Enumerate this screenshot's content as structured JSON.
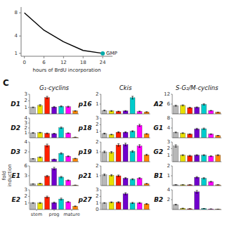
{
  "title": "C",
  "column_headers": [
    "G₁-cyclins",
    "Ckis",
    "S-G₂/M-cyclins"
  ],
  "ylabel": "fold\ninduction",
  "chart_data": [
    {
      "type": "bar",
      "title": "D1",
      "x": [
        0,
        1,
        2,
        3,
        4,
        5,
        6
      ],
      "xlim": [
        -0.5,
        6.5
      ],
      "values": [
        1.0,
        1.3,
        2.5,
        1.05,
        1.15,
        1.1,
        0.45
      ],
      "errors": [
        0.05,
        0.12,
        0.18,
        0.09,
        0.08,
        0.08,
        0.04
      ],
      "colors": [
        "#b8b8b8",
        "#e8e000",
        "#ff2000",
        "#7000cc",
        "#00cccc",
        "#ff00ff",
        "#ff8800"
      ],
      "ylim": [
        0,
        3
      ],
      "yticks": [
        1,
        2,
        3
      ],
      "tick_labels": "y"
    },
    {
      "type": "bar",
      "title": "p16",
      "x": [
        0,
        1,
        2,
        3,
        4,
        5,
        6
      ],
      "xlim": [
        -0.5,
        6.5
      ],
      "values": [
        0.35,
        0.3,
        0.25,
        0.3,
        1.65,
        0.25,
        0.2
      ],
      "errors": [
        0.04,
        0.04,
        0.03,
        0.04,
        0.14,
        0.04,
        0.02
      ],
      "colors": [
        "#b8b8b8",
        "#e8e000",
        "#ff2000",
        "#7000cc",
        "#00cccc",
        "#ff00ff",
        "#ff8800"
      ],
      "ylim": [
        0,
        2
      ],
      "yticks": [
        1,
        2
      ],
      "tick_labels": "y"
    },
    {
      "type": "bar",
      "title": "A2",
      "x": [
        0,
        1,
        2,
        3,
        4,
        5,
        6
      ],
      "xlim": [
        -0.5,
        6.5
      ],
      "values": [
        5.0,
        5.2,
        3.8,
        4.0,
        5.8,
        2.0,
        1.0
      ],
      "errors": [
        0.35,
        0.35,
        0.28,
        0.28,
        0.38,
        0.16,
        0.08
      ],
      "colors": [
        "#b8b8b8",
        "#e8e000",
        "#ff2000",
        "#7000cc",
        "#00cccc",
        "#ff00ff",
        "#ff8800"
      ],
      "ylim": [
        0,
        12
      ],
      "yticks": [
        6,
        12
      ],
      "tick_labels": "y"
    },
    {
      "type": "bar",
      "title": "D2",
      "x": [
        0,
        1,
        2,
        3,
        4,
        5,
        6
      ],
      "xlim": [
        -0.5,
        6.5
      ],
      "values": [
        1.0,
        1.05,
        0.9,
        0.85,
        2.05,
        0.95,
        0.12
      ],
      "errors": [
        0.06,
        0.06,
        0.08,
        0.07,
        0.14,
        0.07,
        0.02
      ],
      "colors": [
        "#b8b8b8",
        "#e8e000",
        "#ff2000",
        "#7000cc",
        "#00cccc",
        "#ff00ff",
        "#ff8800"
      ],
      "ylim": [
        0,
        4
      ],
      "yticks": [
        1,
        2,
        3,
        4
      ],
      "tick_labels": "y"
    },
    {
      "type": "bar",
      "title": "p18",
      "x": [
        0,
        1,
        2,
        3,
        4,
        5,
        6
      ],
      "xlim": [
        -0.5,
        6.5
      ],
      "values": [
        0.65,
        0.5,
        0.85,
        0.85,
        1.0,
        1.9,
        0.6
      ],
      "errors": [
        0.06,
        0.05,
        0.08,
        0.08,
        0.08,
        0.16,
        0.05
      ],
      "colors": [
        "#b8b8b8",
        "#e8e000",
        "#ff2000",
        "#7000cc",
        "#00cccc",
        "#ff00ff",
        "#ff8800"
      ],
      "ylim": [
        0,
        3
      ],
      "yticks": [
        1,
        2,
        3
      ],
      "tick_labels": "y"
    },
    {
      "type": "bar",
      "title": "G1",
      "x": [
        0,
        1,
        2,
        3,
        4,
        5,
        6
      ],
      "xlim": [
        -0.5,
        6.5
      ],
      "values": [
        2.2,
        1.9,
        1.5,
        3.6,
        3.7,
        1.5,
        0.9
      ],
      "errors": [
        0.16,
        0.16,
        0.13,
        0.28,
        0.28,
        0.13,
        0.08
      ],
      "colors": [
        "#b8b8b8",
        "#e8e000",
        "#ff2000",
        "#7000cc",
        "#00cccc",
        "#ff00ff",
        "#ff8800"
      ],
      "ylim": [
        0,
        8
      ],
      "yticks": [
        4,
        8
      ],
      "tick_labels": "y"
    },
    {
      "type": "bar",
      "title": "D3",
      "x": [
        0,
        1,
        2,
        3,
        4,
        5,
        6
      ],
      "xlim": [
        -0.5,
        6.5
      ],
      "values": [
        0.6,
        0.9,
        3.3,
        0.5,
        1.7,
        1.1,
        0.65
      ],
      "errors": [
        0.05,
        0.1,
        0.28,
        0.05,
        0.14,
        0.09,
        0.06
      ],
      "colors": [
        "#b8b8b8",
        "#e8e000",
        "#ff2000",
        "#7000cc",
        "#00cccc",
        "#ff00ff",
        "#ff8800"
      ],
      "ylim": [
        0,
        4
      ],
      "yticks": [
        2,
        4
      ],
      "tick_labels": "y"
    },
    {
      "type": "bar",
      "title": "p19",
      "x": [
        0,
        1,
        2,
        3,
        4,
        5,
        6
      ],
      "xlim": [
        -0.5,
        6.5
      ],
      "values": [
        1.0,
        0.95,
        1.7,
        1.75,
        1.05,
        1.6,
        0.7
      ],
      "errors": [
        0.08,
        0.08,
        0.13,
        0.13,
        0.08,
        0.13,
        0.06
      ],
      "colors": [
        "#b8b8b8",
        "#e8e000",
        "#ff2000",
        "#7000cc",
        "#00cccc",
        "#ff00ff",
        "#ff8800"
      ],
      "ylim": [
        0,
        2
      ],
      "yticks": [
        1,
        2
      ],
      "tick_labels": "y"
    },
    {
      "type": "bar",
      "title": "G2",
      "x": [
        0,
        1,
        2,
        3,
        4,
        5,
        6
      ],
      "xlim": [
        -0.5,
        6.5
      ],
      "values": [
        2.4,
        1.0,
        0.9,
        1.0,
        1.0,
        0.85,
        1.0
      ],
      "errors": [
        0.18,
        0.08,
        0.08,
        0.08,
        0.08,
        0.07,
        0.08
      ],
      "colors": [
        "#b8b8b8",
        "#e8e000",
        "#ff2000",
        "#7000cc",
        "#00cccc",
        "#ff00ff",
        "#ff8800"
      ],
      "ylim": [
        0,
        3
      ],
      "yticks": [
        1,
        2,
        3
      ],
      "tick_labels": "y"
    },
    {
      "type": "bar",
      "title": "E1",
      "x": [
        0,
        1,
        2,
        3,
        4,
        5,
        6
      ],
      "xlim": [
        -0.5,
        6.5
      ],
      "values": [
        0.5,
        0.65,
        2.9,
        5.2,
        2.6,
        1.6,
        0.15
      ],
      "errors": [
        0.05,
        0.06,
        0.22,
        0.38,
        0.22,
        0.14,
        0.02
      ],
      "colors": [
        "#b8b8b8",
        "#e8e000",
        "#ff2000",
        "#7000cc",
        "#00cccc",
        "#ff00ff",
        "#ff8800"
      ],
      "ylim": [
        0,
        6
      ],
      "yticks": [
        3,
        6
      ],
      "tick_labels": "y"
    },
    {
      "type": "bar",
      "title": "p21",
      "x": [
        0,
        1,
        2,
        3,
        4,
        5,
        6
      ],
      "xlim": [
        -0.5,
        6.5
      ],
      "values": [
        1.1,
        1.05,
        1.0,
        0.75,
        0.65,
        0.75,
        0.2
      ],
      "errors": [
        0.08,
        0.07,
        0.08,
        0.06,
        0.06,
        0.06,
        0.02
      ],
      "colors": [
        "#b8b8b8",
        "#e8e000",
        "#ff2000",
        "#7000cc",
        "#00cccc",
        "#ff00ff",
        "#ff8800"
      ],
      "ylim": [
        0,
        2
      ],
      "yticks": [
        1,
        2
      ],
      "tick_labels": "y"
    },
    {
      "type": "bar",
      "title": "B1",
      "x": [
        0,
        1,
        2,
        3,
        4,
        5,
        6
      ],
      "xlim": [
        -0.5,
        6.5
      ],
      "values": [
        0.08,
        0.08,
        0.08,
        0.85,
        0.75,
        0.4,
        0.08
      ],
      "errors": [
        0.01,
        0.01,
        0.01,
        0.07,
        0.06,
        0.04,
        0.01
      ],
      "colors": [
        "#b8b8b8",
        "#e8e000",
        "#ff2000",
        "#7000cc",
        "#00cccc",
        "#ff00ff",
        "#ff8800"
      ],
      "ylim": [
        0,
        2
      ],
      "yticks": [
        1,
        2
      ],
      "tick_labels": "y"
    },
    {
      "type": "bar",
      "title": "E2",
      "x": [
        0,
        1,
        2,
        3,
        4,
        5,
        6
      ],
      "xlim": [
        -0.5,
        6.5
      ],
      "xticks": [
        {
          "value": 0.5,
          "label": "stem"
        },
        {
          "value": 3.0,
          "label": "prog"
        },
        {
          "value": 5.5,
          "label": "mature"
        }
      ],
      "values": [
        1.0,
        1.0,
        1.9,
        1.05,
        1.6,
        1.15,
        0.5
      ],
      "errors": [
        0.06,
        0.08,
        0.14,
        0.09,
        0.14,
        0.09,
        0.05
      ],
      "colors": [
        "#b8b8b8",
        "#e8e000",
        "#ff2000",
        "#7000cc",
        "#00cccc",
        "#ff00ff",
        "#ff8800"
      ],
      "ylim": [
        0,
        3
      ],
      "yticks": [
        1,
        2,
        3
      ]
    },
    {
      "type": "bar",
      "title": "p27",
      "x": [
        0,
        1,
        2,
        3,
        4,
        5,
        6
      ],
      "xlim": [
        -0.5,
        6.5
      ],
      "values": [
        1.0,
        1.1,
        1.1,
        2.4,
        1.0,
        1.0,
        0.85
      ],
      "errors": [
        0.05,
        0.07,
        0.09,
        0.16,
        0.09,
        0.08,
        0.06
      ],
      "colors": [
        "#b8b8b8",
        "#e8e000",
        "#ff2000",
        "#7000cc",
        "#00cccc",
        "#ff00ff",
        "#ff8800"
      ],
      "ylim": [
        0,
        3
      ],
      "yticks": [
        0,
        1,
        2,
        3
      ],
      "tick_labels": "y"
    },
    {
      "type": "bar",
      "title": "B2",
      "x": [
        0,
        1,
        2,
        3,
        4,
        5,
        6
      ],
      "xlim": [
        -0.5,
        6.5
      ],
      "values": [
        1.0,
        0.25,
        0.15,
        3.6,
        0.2,
        0.12,
        0.08
      ],
      "errors": [
        0.08,
        0.03,
        0.02,
        0.28,
        0.02,
        0.02,
        0.01
      ],
      "colors": [
        "#b8b8b8",
        "#e8e000",
        "#ff2000",
        "#7000cc",
        "#00cccc",
        "#ff00ff",
        "#ff8800"
      ],
      "ylim": [
        0,
        4
      ],
      "yticks": [
        2,
        4
      ],
      "tick_labels": "y"
    },
    {
      "type": "line",
      "xlabel": "hours of BrdU incorporation",
      "x": [
        0,
        6,
        12,
        18,
        24
      ],
      "xlim": [
        -1,
        27
      ],
      "xticks": [
        0,
        6,
        12,
        18,
        24
      ],
      "ylim": [
        0.5,
        9
      ],
      "yticks": [
        1,
        4,
        8
      ],
      "series": [
        {
          "type": "line",
          "color": "#000000",
          "values": [
            8,
            5,
            3,
            1.5,
            1.0
          ]
        },
        {
          "type": "scatter",
          "color": "#00aaaa",
          "marker": "circle",
          "x": [
            24
          ],
          "values": [
            1.0
          ]
        }
      ],
      "annotations": [
        {
          "text": "GMP",
          "x": 24,
          "y": 1.0
        }
      ]
    }
  ]
}
